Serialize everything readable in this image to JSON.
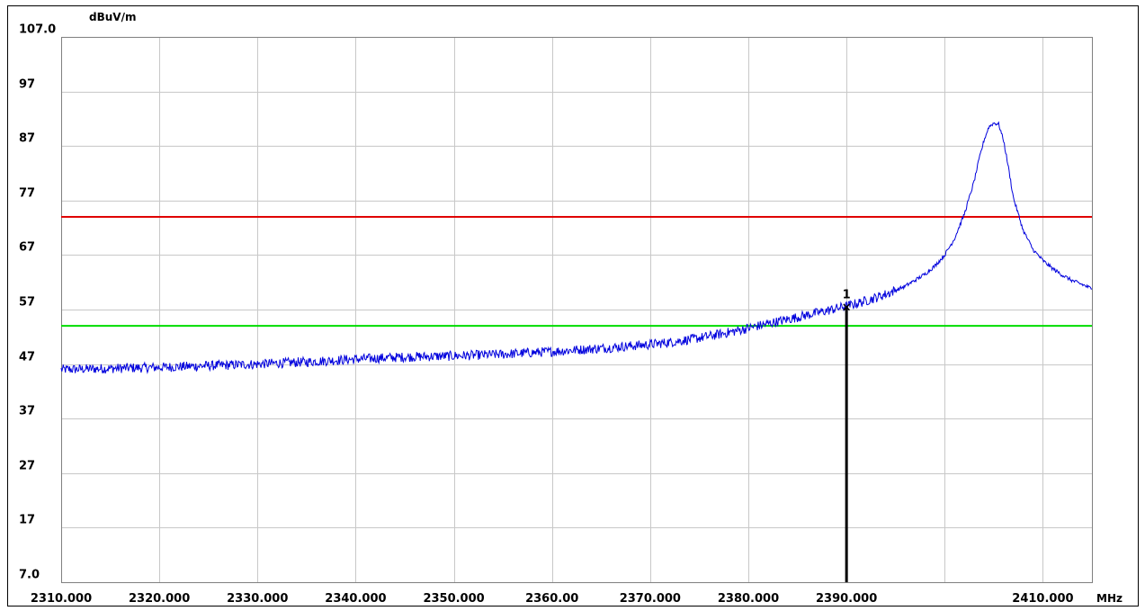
{
  "chart_data": {
    "type": "line",
    "title": "",
    "ylabel": "dBuV/m",
    "xlabel": "MHz",
    "ylim": [
      7.0,
      107.0
    ],
    "xlim": [
      2310.0,
      2415.0
    ],
    "y_tick_labels": [
      "107.0",
      "97",
      "87",
      "77",
      "67",
      "57",
      "47",
      "37",
      "27",
      "17",
      "7.0"
    ],
    "y_tick_values": [
      107,
      97,
      87,
      77,
      67,
      57,
      47,
      37,
      27,
      17,
      7
    ],
    "x_tick_labels": [
      "2310.000",
      "2320.000",
      "2330.000",
      "2340.000",
      "2350.000",
      "2360.00",
      "2370.000",
      "2380.000",
      "2390.000",
      "2410.000"
    ],
    "x_tick_values": [
      2310,
      2320,
      2330,
      2340,
      2350,
      2360,
      2370,
      2380,
      2390,
      2410
    ],
    "x_grid_values": [
      2310,
      2320,
      2330,
      2340,
      2350,
      2360,
      2370,
      2380,
      2390,
      2400,
      2410,
      2415
    ],
    "grid": true,
    "limit_lines": [
      {
        "value": 74.0,
        "color": "#e00000"
      },
      {
        "value": 54.0,
        "color": "#00dd00"
      }
    ],
    "marker": {
      "label": "1",
      "x": 2390.0,
      "y": 57.6,
      "color": "#000000"
    },
    "series": [
      {
        "color": "#0000dd",
        "x": [
          2310,
          2315,
          2320,
          2325,
          2330,
          2335,
          2340,
          2345,
          2350,
          2355,
          2360,
          2365,
          2370,
          2372,
          2374,
          2376,
          2378,
          2380,
          2382,
          2384,
          2386,
          2388,
          2390,
          2392,
          2394,
          2396,
          2398,
          2399,
          2400,
          2401,
          2402,
          2403,
          2403.5,
          2404,
          2404.5,
          2405,
          2405.5,
          2406,
          2406.5,
          2407,
          2408,
          2409,
          2410,
          2411,
          2412,
          2413,
          2414,
          2415
        ],
        "y": [
          46.0,
          46.2,
          46.4,
          46.7,
          47.0,
          47.4,
          47.9,
          48.3,
          48.5,
          48.8,
          49.3,
          49.9,
          50.6,
          51.0,
          51.5,
          52.1,
          52.8,
          53.6,
          54.4,
          55.2,
          56.0,
          56.8,
          57.6,
          58.6,
          59.8,
          61.3,
          63.5,
          65.0,
          67.0,
          70.0,
          74.5,
          80.5,
          84.5,
          88.0,
          90.5,
          91.2,
          91.0,
          88.0,
          83.0,
          77.5,
          71.5,
          68.0,
          66.0,
          64.5,
          63.3,
          62.3,
          61.6,
          60.8
        ]
      }
    ]
  }
}
